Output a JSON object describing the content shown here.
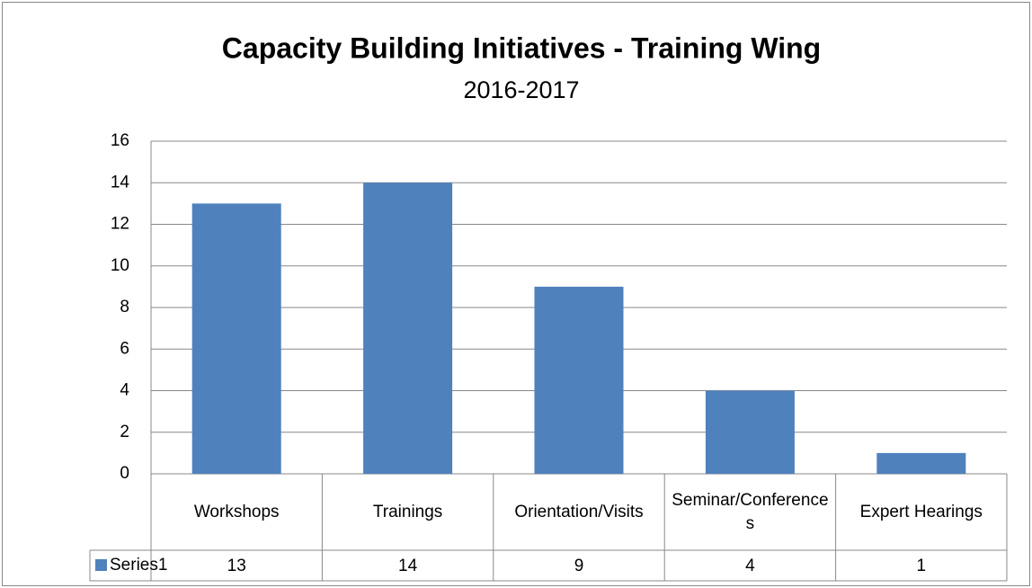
{
  "chart_data": {
    "type": "bar",
    "title": "Capacity Building Initiatives - Training Wing",
    "subtitle": "2016-2017",
    "categories": [
      "Workshops",
      "Trainings",
      "Orientation/Visits",
      "Seminar/Conferences",
      "Expert Hearings"
    ],
    "series": [
      {
        "name": "Series1",
        "color": "#4f81bd",
        "values": [
          13,
          14,
          9,
          4,
          1
        ]
      }
    ],
    "ylim": [
      0,
      16
    ],
    "yticks": [
      0,
      2,
      4,
      6,
      8,
      10,
      12,
      14,
      16
    ],
    "grid": true
  }
}
